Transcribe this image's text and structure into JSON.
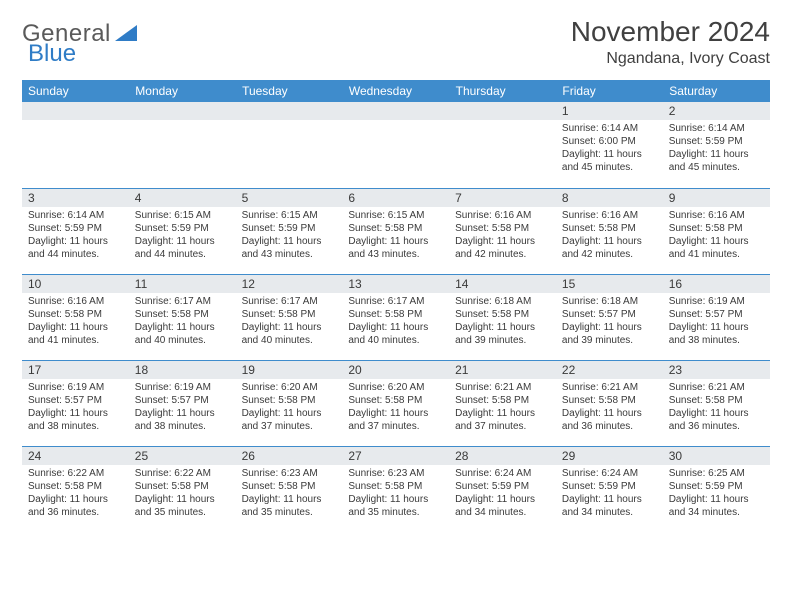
{
  "brand": {
    "part1": "General",
    "part2": "Blue"
  },
  "title": "November 2024",
  "location": "Ngandana, Ivory Coast",
  "header_bg": "#3f8ccc",
  "header_text_color": "#ffffff",
  "border_color": "#3f8ccc",
  "daynum_bg": "#e7eaed",
  "weekdays": [
    "Sunday",
    "Monday",
    "Tuesday",
    "Wednesday",
    "Thursday",
    "Friday",
    "Saturday"
  ],
  "weeks": [
    [
      {
        "n": "",
        "sr": "",
        "ss": "",
        "dl": ""
      },
      {
        "n": "",
        "sr": "",
        "ss": "",
        "dl": ""
      },
      {
        "n": "",
        "sr": "",
        "ss": "",
        "dl": ""
      },
      {
        "n": "",
        "sr": "",
        "ss": "",
        "dl": ""
      },
      {
        "n": "",
        "sr": "",
        "ss": "",
        "dl": ""
      },
      {
        "n": "1",
        "sr": "Sunrise: 6:14 AM",
        "ss": "Sunset: 6:00 PM",
        "dl": "Daylight: 11 hours and 45 minutes."
      },
      {
        "n": "2",
        "sr": "Sunrise: 6:14 AM",
        "ss": "Sunset: 5:59 PM",
        "dl": "Daylight: 11 hours and 45 minutes."
      }
    ],
    [
      {
        "n": "3",
        "sr": "Sunrise: 6:14 AM",
        "ss": "Sunset: 5:59 PM",
        "dl": "Daylight: 11 hours and 44 minutes."
      },
      {
        "n": "4",
        "sr": "Sunrise: 6:15 AM",
        "ss": "Sunset: 5:59 PM",
        "dl": "Daylight: 11 hours and 44 minutes."
      },
      {
        "n": "5",
        "sr": "Sunrise: 6:15 AM",
        "ss": "Sunset: 5:59 PM",
        "dl": "Daylight: 11 hours and 43 minutes."
      },
      {
        "n": "6",
        "sr": "Sunrise: 6:15 AM",
        "ss": "Sunset: 5:58 PM",
        "dl": "Daylight: 11 hours and 43 minutes."
      },
      {
        "n": "7",
        "sr": "Sunrise: 6:16 AM",
        "ss": "Sunset: 5:58 PM",
        "dl": "Daylight: 11 hours and 42 minutes."
      },
      {
        "n": "8",
        "sr": "Sunrise: 6:16 AM",
        "ss": "Sunset: 5:58 PM",
        "dl": "Daylight: 11 hours and 42 minutes."
      },
      {
        "n": "9",
        "sr": "Sunrise: 6:16 AM",
        "ss": "Sunset: 5:58 PM",
        "dl": "Daylight: 11 hours and 41 minutes."
      }
    ],
    [
      {
        "n": "10",
        "sr": "Sunrise: 6:16 AM",
        "ss": "Sunset: 5:58 PM",
        "dl": "Daylight: 11 hours and 41 minutes."
      },
      {
        "n": "11",
        "sr": "Sunrise: 6:17 AM",
        "ss": "Sunset: 5:58 PM",
        "dl": "Daylight: 11 hours and 40 minutes."
      },
      {
        "n": "12",
        "sr": "Sunrise: 6:17 AM",
        "ss": "Sunset: 5:58 PM",
        "dl": "Daylight: 11 hours and 40 minutes."
      },
      {
        "n": "13",
        "sr": "Sunrise: 6:17 AM",
        "ss": "Sunset: 5:58 PM",
        "dl": "Daylight: 11 hours and 40 minutes."
      },
      {
        "n": "14",
        "sr": "Sunrise: 6:18 AM",
        "ss": "Sunset: 5:58 PM",
        "dl": "Daylight: 11 hours and 39 minutes."
      },
      {
        "n": "15",
        "sr": "Sunrise: 6:18 AM",
        "ss": "Sunset: 5:57 PM",
        "dl": "Daylight: 11 hours and 39 minutes."
      },
      {
        "n": "16",
        "sr": "Sunrise: 6:19 AM",
        "ss": "Sunset: 5:57 PM",
        "dl": "Daylight: 11 hours and 38 minutes."
      }
    ],
    [
      {
        "n": "17",
        "sr": "Sunrise: 6:19 AM",
        "ss": "Sunset: 5:57 PM",
        "dl": "Daylight: 11 hours and 38 minutes."
      },
      {
        "n": "18",
        "sr": "Sunrise: 6:19 AM",
        "ss": "Sunset: 5:57 PM",
        "dl": "Daylight: 11 hours and 38 minutes."
      },
      {
        "n": "19",
        "sr": "Sunrise: 6:20 AM",
        "ss": "Sunset: 5:58 PM",
        "dl": "Daylight: 11 hours and 37 minutes."
      },
      {
        "n": "20",
        "sr": "Sunrise: 6:20 AM",
        "ss": "Sunset: 5:58 PM",
        "dl": "Daylight: 11 hours and 37 minutes."
      },
      {
        "n": "21",
        "sr": "Sunrise: 6:21 AM",
        "ss": "Sunset: 5:58 PM",
        "dl": "Daylight: 11 hours and 37 minutes."
      },
      {
        "n": "22",
        "sr": "Sunrise: 6:21 AM",
        "ss": "Sunset: 5:58 PM",
        "dl": "Daylight: 11 hours and 36 minutes."
      },
      {
        "n": "23",
        "sr": "Sunrise: 6:21 AM",
        "ss": "Sunset: 5:58 PM",
        "dl": "Daylight: 11 hours and 36 minutes."
      }
    ],
    [
      {
        "n": "24",
        "sr": "Sunrise: 6:22 AM",
        "ss": "Sunset: 5:58 PM",
        "dl": "Daylight: 11 hours and 36 minutes."
      },
      {
        "n": "25",
        "sr": "Sunrise: 6:22 AM",
        "ss": "Sunset: 5:58 PM",
        "dl": "Daylight: 11 hours and 35 minutes."
      },
      {
        "n": "26",
        "sr": "Sunrise: 6:23 AM",
        "ss": "Sunset: 5:58 PM",
        "dl": "Daylight: 11 hours and 35 minutes."
      },
      {
        "n": "27",
        "sr": "Sunrise: 6:23 AM",
        "ss": "Sunset: 5:58 PM",
        "dl": "Daylight: 11 hours and 35 minutes."
      },
      {
        "n": "28",
        "sr": "Sunrise: 6:24 AM",
        "ss": "Sunset: 5:59 PM",
        "dl": "Daylight: 11 hours and 34 minutes."
      },
      {
        "n": "29",
        "sr": "Sunrise: 6:24 AM",
        "ss": "Sunset: 5:59 PM",
        "dl": "Daylight: 11 hours and 34 minutes."
      },
      {
        "n": "30",
        "sr": "Sunrise: 6:25 AM",
        "ss": "Sunset: 5:59 PM",
        "dl": "Daylight: 11 hours and 34 minutes."
      }
    ]
  ]
}
